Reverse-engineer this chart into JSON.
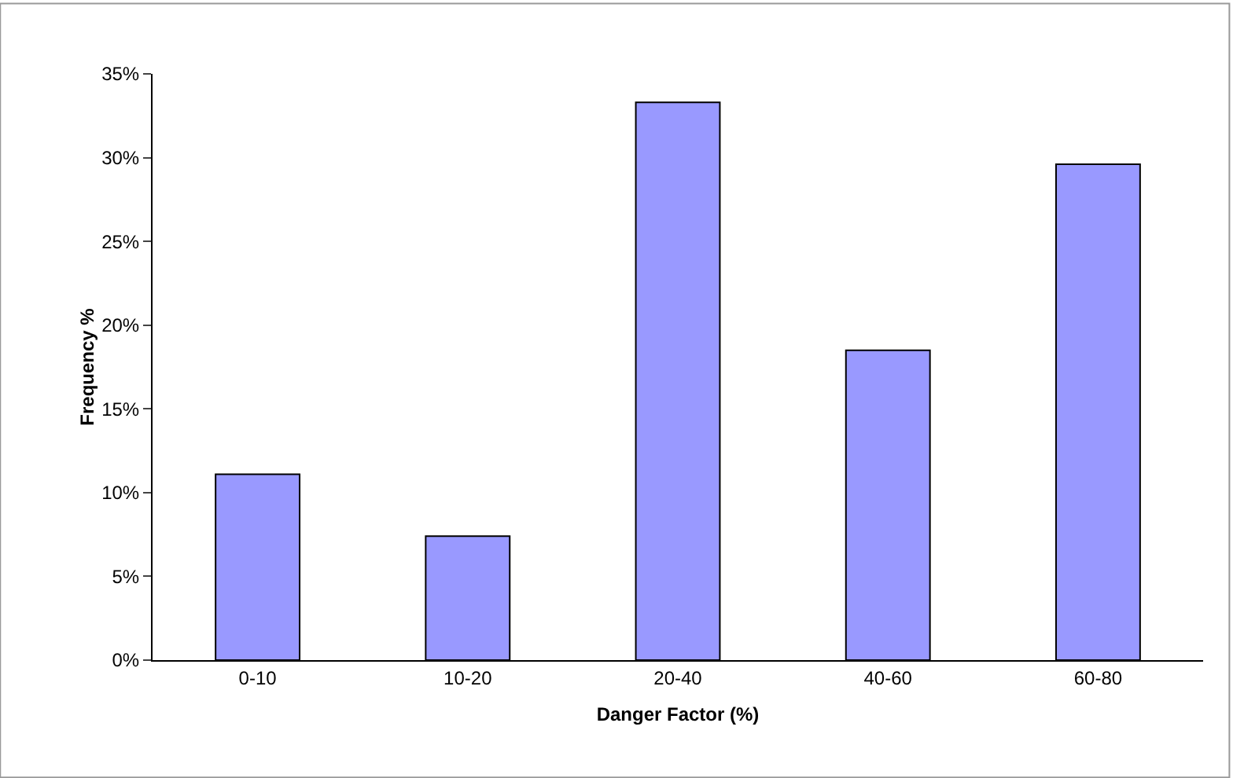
{
  "chart_data": {
    "type": "bar",
    "xlabel": "Danger Factor (%)",
    "ylabel": "Frequency %",
    "categories": [
      "0-10",
      "10-20",
      "20-40",
      "40-60",
      "60-80"
    ],
    "values": [
      11.1,
      7.4,
      33.3,
      18.5,
      29.6
    ],
    "color": "#9999ff",
    "ylim": [
      0,
      35
    ],
    "yticks": [
      {
        "value": 0,
        "label": "0%"
      },
      {
        "value": 5,
        "label": "5%"
      },
      {
        "value": 10,
        "label": "10%"
      },
      {
        "value": 15,
        "label": "15%"
      },
      {
        "value": 20,
        "label": "20%"
      },
      {
        "value": 25,
        "label": "25%"
      },
      {
        "value": 30,
        "label": "30%"
      },
      {
        "value": 35,
        "label": "35%"
      }
    ],
    "grid": false,
    "legend": false
  }
}
